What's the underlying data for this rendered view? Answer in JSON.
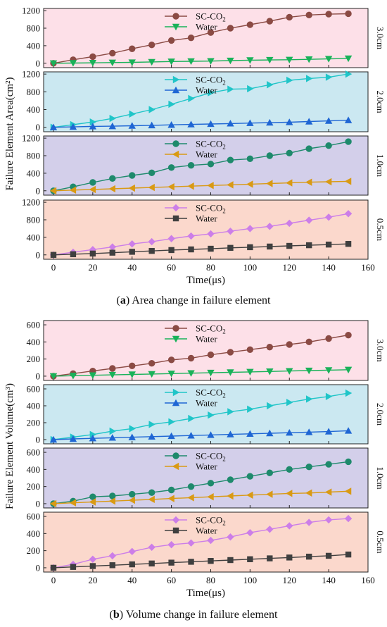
{
  "figure": {
    "caption_a_letter": "a",
    "caption_a_text": "Area change in failure element",
    "caption_b_letter": "b",
    "caption_b_text": "Volume change in failure element"
  },
  "legend_labels": {
    "sc_base": "SC-CO",
    "sc_sub": "2",
    "water": "Water"
  },
  "colors": {
    "sc_3cm": "#8b4b44",
    "sc_2cm": "#20c5c8",
    "sc_1cm": "#1e8a6c",
    "sc_05cm": "#cc7ee8",
    "water_3cm": "#19b259",
    "water_2cm": "#1f66d4",
    "water_1cm": "#d99a14",
    "water_05cm": "#3f3f3f",
    "bg_3cm": "#fde0e8",
    "bg_2cm": "#cbe8f1",
    "bg_1cm": "#d3cfea",
    "bg_05cm": "#fbd8cc"
  },
  "chart_data": [
    {
      "type": "line",
      "title": "Area change in failure element",
      "ylabel": "Failure Element Area(cm²)",
      "xlabel": "Time(μs)",
      "xlim": [
        -5,
        160
      ],
      "xticks": [
        0,
        20,
        40,
        60,
        80,
        100,
        120,
        140,
        160
      ],
      "x": [
        0,
        10,
        20,
        30,
        40,
        50,
        60,
        70,
        80,
        90,
        100,
        110,
        120,
        130,
        140,
        150
      ],
      "panels": [
        {
          "label": "3.0cm",
          "ylim": [
            -100,
            1250
          ],
          "yticks": [
            0,
            400,
            800,
            1200
          ],
          "series": [
            {
              "name": "SC-CO2",
              "values": [
                0,
                80,
                150,
                230,
                330,
                420,
                520,
                580,
                700,
                800,
                880,
                960,
                1050,
                1100,
                1120,
                1130
              ]
            },
            {
              "name": "Water",
              "values": [
                0,
                5,
                10,
                15,
                20,
                30,
                40,
                45,
                50,
                60,
                70,
                75,
                80,
                90,
                100,
                110
              ]
            }
          ]
        },
        {
          "label": "2.0cm",
          "ylim": [
            -100,
            1250
          ],
          "yticks": [
            0,
            400,
            800,
            1200
          ],
          "series": [
            {
              "name": "SC-CO2",
              "values": [
                0,
                60,
                120,
                200,
                300,
                400,
                520,
                650,
                780,
                860,
                870,
                960,
                1060,
                1100,
                1130,
                1200
              ]
            },
            {
              "name": "Water",
              "values": [
                0,
                10,
                20,
                25,
                35,
                45,
                55,
                65,
                75,
                85,
                95,
                105,
                115,
                130,
                145,
                160
              ]
            }
          ]
        },
        {
          "label": "1.0cm",
          "ylim": [
            -100,
            1250
          ],
          "yticks": [
            0,
            400,
            800,
            1200
          ],
          "series": [
            {
              "name": "SC-CO2",
              "values": [
                0,
                90,
                190,
                280,
                350,
                410,
                530,
                580,
                610,
                700,
                730,
                800,
                860,
                960,
                1030,
                1120
              ]
            },
            {
              "name": "Water",
              "values": [
                0,
                15,
                30,
                45,
                60,
                75,
                90,
                105,
                120,
                135,
                150,
                165,
                180,
                195,
                205,
                215
              ]
            }
          ]
        },
        {
          "label": "0.5cm",
          "ylim": [
            -100,
            1250
          ],
          "yticks": [
            0,
            400,
            800,
            1200
          ],
          "series": [
            {
              "name": "SC-CO2",
              "values": [
                0,
                60,
                120,
                180,
                250,
                300,
                370,
                430,
                480,
                540,
                600,
                650,
                720,
                790,
                860,
                940
              ]
            },
            {
              "name": "Water",
              "values": [
                0,
                15,
                30,
                50,
                70,
                90,
                110,
                125,
                140,
                160,
                175,
                190,
                205,
                220,
                235,
                250
              ]
            }
          ]
        }
      ]
    },
    {
      "type": "line",
      "title": "Volume change in failure element",
      "ylabel": "Failure Element Volume(cm³)",
      "xlabel": "Time(μs)",
      "xlim": [
        -5,
        160
      ],
      "xticks": [
        0,
        20,
        40,
        60,
        80,
        100,
        120,
        140,
        160
      ],
      "x": [
        0,
        10,
        20,
        30,
        40,
        50,
        60,
        70,
        80,
        90,
        100,
        110,
        120,
        130,
        140,
        150
      ],
      "panels": [
        {
          "label": "3.0cm",
          "ylim": [
            -50,
            650
          ],
          "yticks": [
            0,
            200,
            400,
            600
          ],
          "series": [
            {
              "name": "SC-CO2",
              "values": [
                0,
                30,
                60,
                90,
                120,
                150,
                190,
                210,
                250,
                280,
                310,
                340,
                370,
                400,
                440,
                480
              ]
            },
            {
              "name": "Water",
              "values": [
                0,
                5,
                10,
                15,
                20,
                25,
                30,
                35,
                40,
                45,
                50,
                55,
                60,
                65,
                70,
                75
              ]
            }
          ]
        },
        {
          "label": "2.0cm",
          "ylim": [
            -50,
            650
          ],
          "yticks": [
            0,
            200,
            400,
            600
          ],
          "series": [
            {
              "name": "SC-CO2",
              "values": [
                0,
                30,
                60,
                100,
                130,
                180,
                210,
                250,
                290,
                330,
                360,
                400,
                440,
                480,
                510,
                550
              ]
            },
            {
              "name": "Water",
              "values": [
                0,
                8,
                15,
                22,
                28,
                35,
                42,
                48,
                55,
                62,
                68,
                75,
                82,
                88,
                95,
                105
              ]
            }
          ]
        },
        {
          "label": "1.0cm",
          "ylim": [
            -50,
            650
          ],
          "yticks": [
            0,
            200,
            400,
            600
          ],
          "series": [
            {
              "name": "SC-CO2",
              "values": [
                0,
                30,
                80,
                90,
                110,
                130,
                160,
                200,
                240,
                280,
                320,
                360,
                400,
                430,
                460,
                490
              ]
            },
            {
              "name": "Water",
              "values": [
                0,
                10,
                20,
                30,
                40,
                50,
                60,
                70,
                80,
                90,
                100,
                110,
                120,
                125,
                135,
                145
              ]
            }
          ]
        },
        {
          "label": "0.5cm",
          "ylim": [
            -50,
            650
          ],
          "yticks": [
            0,
            200,
            400,
            600
          ],
          "series": [
            {
              "name": "SC-CO2",
              "values": [
                0,
                40,
                100,
                140,
                190,
                240,
                270,
                290,
                320,
                360,
                410,
                450,
                490,
                530,
                560,
                575
              ]
            },
            {
              "name": "Water",
              "values": [
                0,
                10,
                20,
                30,
                40,
                50,
                60,
                70,
                80,
                90,
                100,
                110,
                120,
                130,
                140,
                155
              ]
            }
          ]
        }
      ]
    }
  ]
}
